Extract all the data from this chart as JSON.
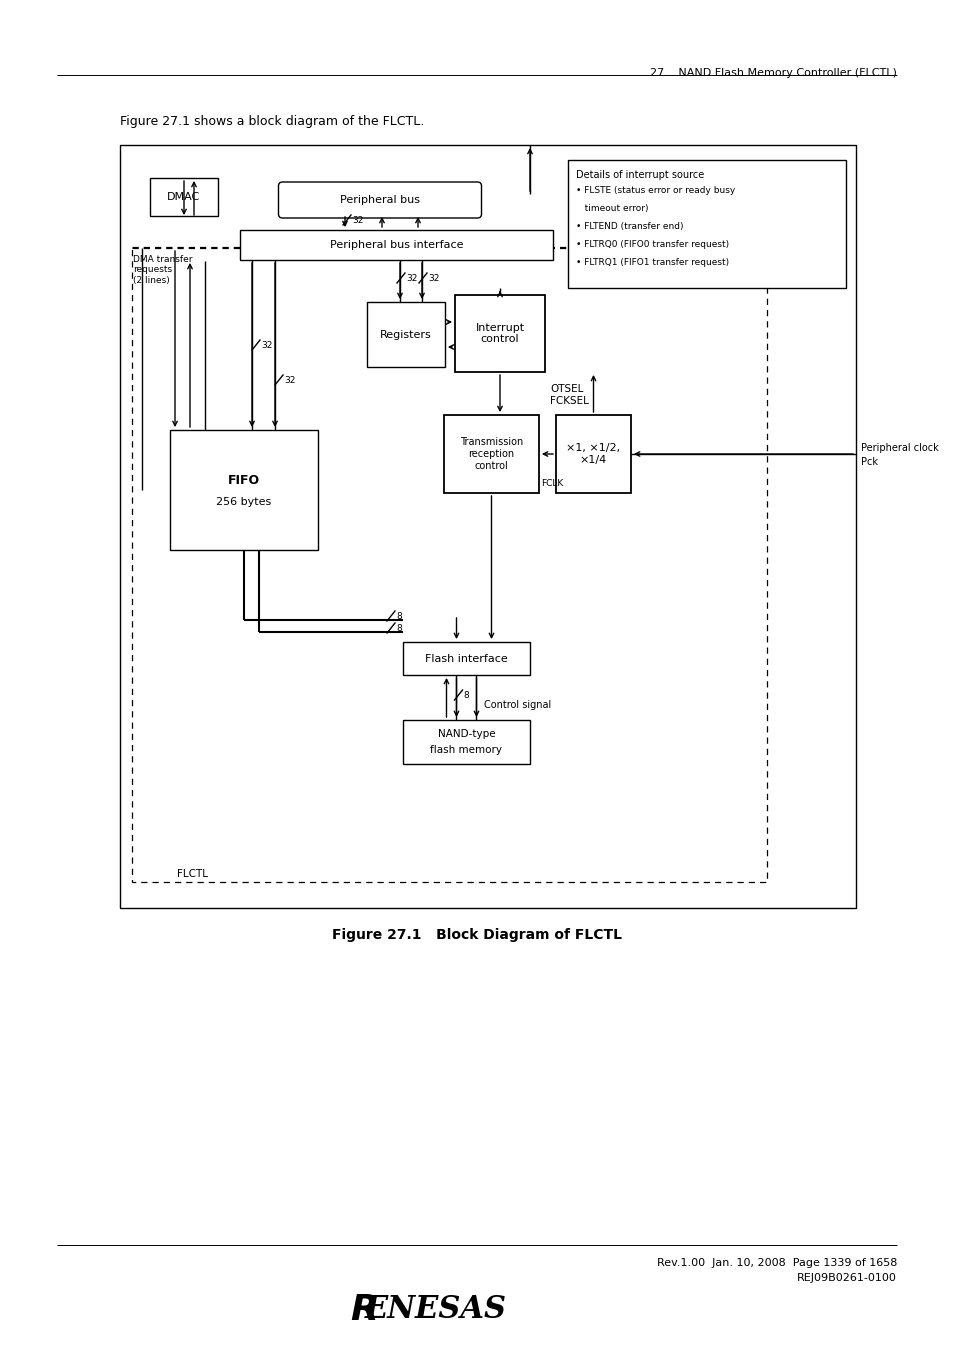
{
  "page_header": "27.   NAND Flash Memory Controller (FLCTL)",
  "intro_text": "Figure 27.1 shows a block diagram of the FLCTL.",
  "figure_caption": "Figure 27.1   Block Diagram of FLCTL",
  "footer_line1": "Rev.1.00  Jan. 10, 2008  Page 1339 of 1658",
  "footer_line2": "REJ09B0261-0100",
  "bg_color": "#ffffff"
}
